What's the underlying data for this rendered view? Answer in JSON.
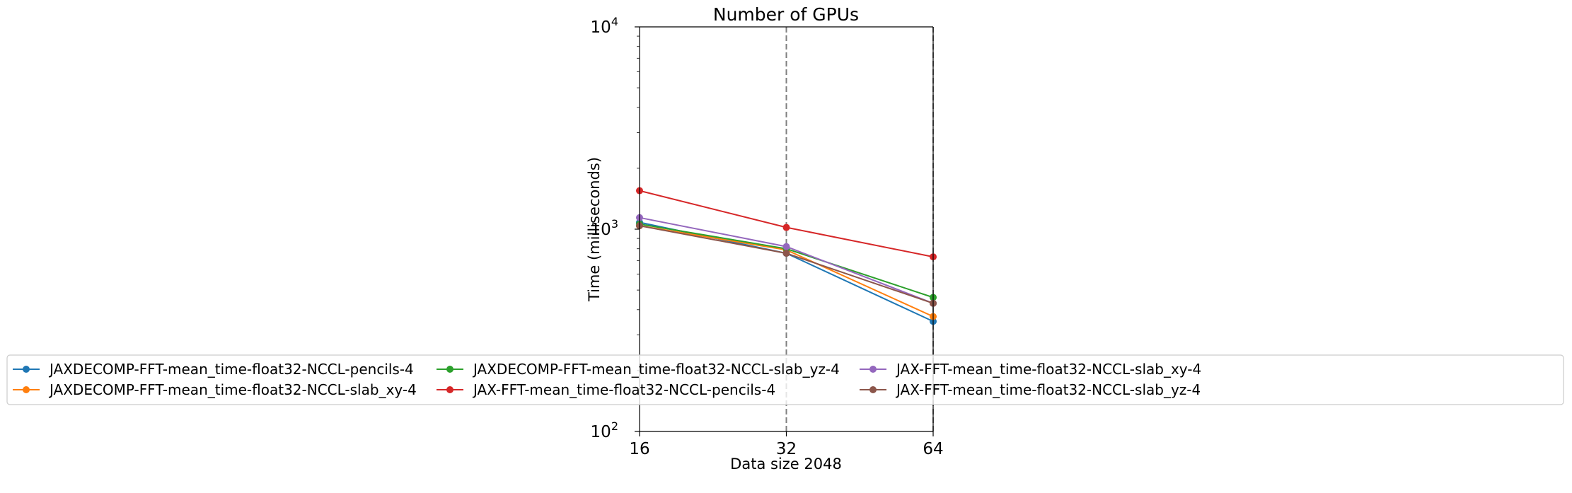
{
  "chart_data": {
    "type": "line",
    "title": "Number of GPUs",
    "xlabel": "Data size 2048",
    "ylabel": "Time (milliseconds)",
    "x": [
      16,
      32,
      64
    ],
    "x_scale": "log2",
    "y_scale": "log",
    "ylim": [
      100,
      10000
    ],
    "y_ticks": [
      {
        "value": 100,
        "base": "10",
        "exp": "2"
      },
      {
        "value": 1000,
        "base": "10",
        "exp": "3"
      },
      {
        "value": 10000,
        "base": "10",
        "exp": "4"
      }
    ],
    "x_tick_labels": [
      "16",
      "32",
      "64"
    ],
    "vlines": [
      32,
      64
    ],
    "grid": false,
    "legend_position": "lower-center",
    "legend_columns": 4,
    "series": [
      {
        "name": "JAXDECOMP-FFT-mean_time-float32-NCCL-pencils-4",
        "color": "#1f77b4",
        "values": [
          1080,
          760,
          350
        ]
      },
      {
        "name": "JAXDECOMP-FFT-mean_time-float32-NCCL-slab_xy-4",
        "color": "#ff7f0e",
        "values": [
          1040,
          790,
          370
        ]
      },
      {
        "name": "JAXDECOMP-FFT-mean_time-float32-NCCL-slab_yz-4",
        "color": "#2ca02c",
        "values": [
          1060,
          800,
          460
        ]
      },
      {
        "name": "JAX-FFT-mean_time-float32-NCCL-pencils-4",
        "color": "#d62728",
        "values": [
          1550,
          1020,
          730
        ]
      },
      {
        "name": "JAX-FFT-mean_time-float32-NCCL-slab_xy-4",
        "color": "#9467bd",
        "values": [
          1140,
          820,
          430
        ]
      },
      {
        "name": "JAX-FFT-mean_time-float32-NCCL-slab_yz-4",
        "color": "#8c564b",
        "values": [
          1040,
          760,
          430
        ]
      }
    ]
  }
}
